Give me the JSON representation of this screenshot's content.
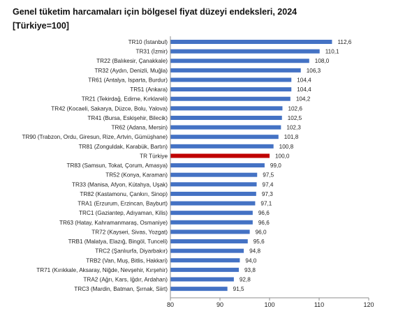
{
  "chart_data": {
    "type": "bar",
    "orientation": "horizontal",
    "title": "Genel tüketim harcamaları için bölgesel fiyat düzeyi endeksleri, 2024",
    "subtitle": "[Türkiye=100]",
    "categories": [
      "TR10 (İstanbul)",
      "TR31 (İzmir)",
      "TR22 (Balıkesir, Çanakkale)",
      "TR32 (Aydın, Denizli, Muğla)",
      "TR61 (Antalya, Isparta, Burdur)",
      "TR51 (Ankara)",
      "TR21 (Tekirdağ, Edirne, Kırklareli)",
      "TR42 (Kocaeli, Sakarya, Düzce, Bolu, Yalova)",
      "TR41 (Bursa, Eskişehir, Bilecik)",
      "TR62 (Adana, Mersin)",
      "TR90 (Trabzon, Ordu, Giresun, Rize, Artvin, Gümüşhane)",
      "TR81 (Zonguldak, Karabük, Bartın)",
      "TR Türkiye",
      "TR83 (Samsun, Tokat, Çorum, Amasya)",
      "TR52 (Konya, Karaman)",
      "TR33 (Manisa, Afyon, Kütahya, Uşak)",
      "TR82 (Kastamonu, Çankırı, Sinop)",
      "TRA1 (Erzurum, Erzincan, Bayburt)",
      "TRC1 (Gaziantep, Adıyaman, Kilis)",
      "TR63 (Hatay, Kahramanmaraş, Osmaniye)",
      "TR72 (Kayseri, Sivas, Yozgat)",
      "TRB1 (Malatya, Elazığ, Bingöl, Tunceli)",
      "TRC2 (Şanlıurfa, Diyarbakır)",
      "TRB2 (Van, Muş, Bitlis, Hakkari)",
      "TR71 (Kırıkkale, Aksaray, Niğde, Nevşehir, Kırşehir)",
      "TRA2 (Ağrı, Kars, Iğdır, Ardahan)",
      "TRC3 (Mardin, Batman, Şırnak, Siirt)"
    ],
    "values": [
      112.6,
      110.1,
      108.0,
      106.3,
      104.4,
      104.4,
      104.2,
      102.6,
      102.5,
      102.3,
      101.8,
      100.8,
      100.0,
      99.0,
      97.5,
      97.4,
      97.3,
      97.1,
      96.6,
      96.6,
      96.0,
      95.6,
      94.8,
      94.0,
      93.8,
      92.8,
      91.5
    ],
    "value_labels": [
      "112,6",
      "110,1",
      "108,0",
      "106,3",
      "104,4",
      "104,4",
      "104,2",
      "102,6",
      "102,5",
      "102,3",
      "101,8",
      "100,8",
      "100,0",
      "99,0",
      "97,5",
      "97,4",
      "97,3",
      "97,1",
      "96,6",
      "96,6",
      "96,0",
      "95,6",
      "94,8",
      "94,0",
      "93,8",
      "92,8",
      "91,5"
    ],
    "highlight_category": "TR Türkiye",
    "xlim": [
      80,
      120
    ],
    "xticks": [
      80,
      90,
      100,
      110,
      120
    ],
    "xlabel": "",
    "ylabel": "",
    "grid": false,
    "colors": {
      "bar": "#4472C4",
      "highlight": "#C00000",
      "axis": "#8c8c8c"
    }
  }
}
